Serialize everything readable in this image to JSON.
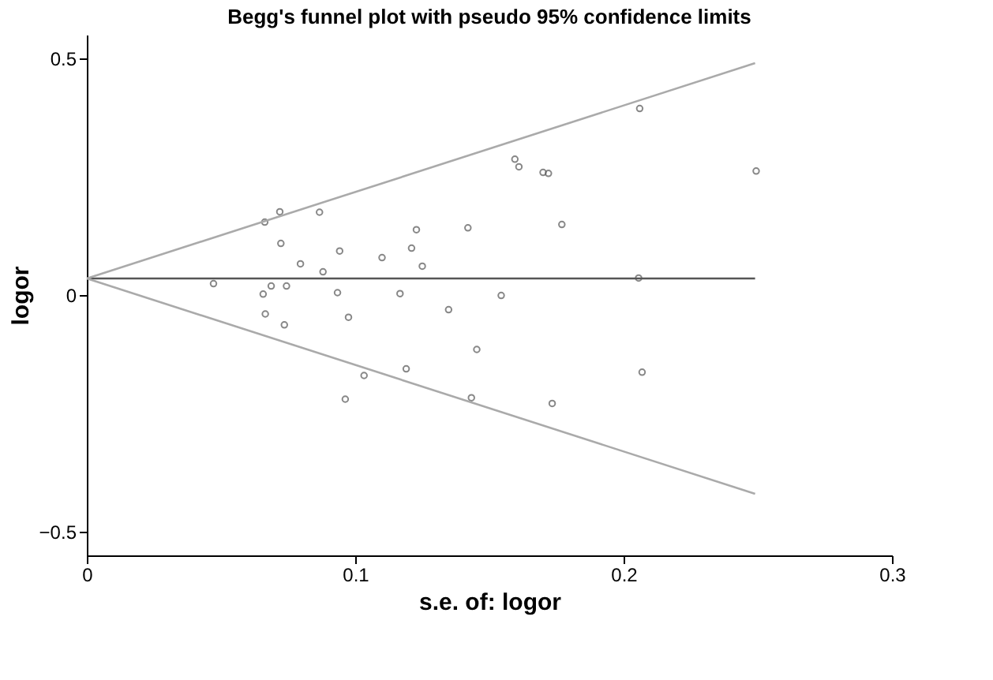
{
  "chart_data": {
    "type": "scatter",
    "title": "Begg's funnel plot with pseudo 95% confidence limits",
    "xlabel": "s.e. of: logor",
    "ylabel": "logor",
    "xlim": [
      0,
      0.3
    ],
    "ylim": [
      -0.55,
      0.55
    ],
    "xticks": [
      0,
      0.1,
      0.2,
      0.3
    ],
    "yticks": [
      -0.5,
      0,
      0.5
    ],
    "grid": false,
    "legend": false,
    "series": [
      {
        "marker": "circle",
        "color": "#555555",
        "x": [
          0.0719,
          0.0867,
          0.0663,
          0.0723,
          0.0942,
          0.11,
          0.0796,
          0.088,
          0.0472,
          0.0687,
          0.0744,
          0.0657,
          0.0934,
          0.1167,
          0.0665,
          0.0975,
          0.0736,
          0.1033,
          0.0963,
          0.1595,
          0.161,
          0.17,
          0.172,
          0.1228,
          0.142,
          0.177,
          0.121,
          0.125,
          0.2056,
          0.1544,
          0.1348,
          0.1453,
          0.119,
          0.1433,
          0.1734,
          0.2069,
          0.206,
          0.2494
        ],
        "values": [
          0.176,
          0.175,
          0.154,
          0.109,
          0.093,
          0.079,
          0.066,
          0.049,
          0.024,
          0.019,
          0.019,
          0.002,
          0.005,
          0.003,
          -0.04,
          -0.047,
          -0.063,
          -0.17,
          -0.22,
          0.287,
          0.271,
          0.259,
          0.257,
          0.138,
          0.142,
          0.149,
          0.099,
          0.061,
          0.036,
          -0.001,
          -0.031,
          -0.115,
          -0.156,
          -0.217,
          -0.229,
          -0.163,
          0.394,
          0.262
        ]
      },
      {
        "type": "line",
        "line_style": "solid",
        "color": "#555555",
        "x": [
          0,
          0.249
        ],
        "values": [
          0.035,
          0.035
        ]
      },
      {
        "type": "line",
        "line_style": "solid",
        "color": "#aaaaaa",
        "x": [
          0,
          0.249
        ],
        "values": [
          0.035,
          0.49
        ]
      },
      {
        "type": "line",
        "line_style": "solid",
        "color": "#aaaaaa",
        "x": [
          0,
          0.249
        ],
        "values": [
          0.035,
          -0.42
        ]
      }
    ]
  }
}
